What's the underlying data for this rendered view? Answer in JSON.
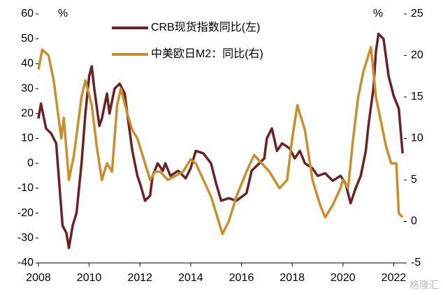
{
  "chart_data": {
    "type": "line",
    "y_unit": "%",
    "y2_unit": "%",
    "xlim": [
      2008,
      2022.4
    ],
    "xticks": [
      2008,
      2010,
      2012,
      2014,
      2016,
      2018,
      2020,
      2022
    ],
    "ylim": [
      -40,
      60
    ],
    "yticks": [
      -40,
      -30,
      -20,
      -10,
      0,
      10,
      20,
      30,
      40,
      50,
      60
    ],
    "y2lim": [
      -5,
      25
    ],
    "y2ticks": [
      -5,
      0,
      5,
      10,
      15,
      20,
      25
    ],
    "legend": "top",
    "watermark": "格隆汇",
    "series": [
      {
        "name": "CRB现货指数同比(左)",
        "color": "#6b2222",
        "x": [
          2008.0,
          2008.1,
          2008.3,
          2008.5,
          2008.7,
          2008.95,
          2009.1,
          2009.2,
          2009.35,
          2009.5,
          2009.7,
          2009.85,
          2010.0,
          2010.1,
          2010.2,
          2010.4,
          2010.5,
          2010.7,
          2010.8,
          2011.0,
          2011.2,
          2011.4,
          2011.5,
          2011.7,
          2011.9,
          2012.0,
          2012.2,
          2012.4,
          2012.5,
          2012.7,
          2012.9,
          2013.0,
          2013.2,
          2013.5,
          2013.8,
          2014.0,
          2014.2,
          2014.5,
          2014.8,
          2015.0,
          2015.2,
          2015.5,
          2015.8,
          2016.2,
          2016.4,
          2016.7,
          2016.9,
          2017.0,
          2017.2,
          2017.4,
          2017.6,
          2017.9,
          2018.1,
          2018.3,
          2018.5,
          2018.8,
          2019.0,
          2019.3,
          2019.6,
          2019.9,
          2020.1,
          2020.3,
          2020.5,
          2020.7,
          2020.9,
          2021.0,
          2021.2,
          2021.3,
          2021.4,
          2021.6,
          2021.8,
          2022.0,
          2022.2,
          2022.35
        ],
        "values": [
          18,
          24,
          14,
          12,
          8,
          -25,
          -28,
          -34,
          -25,
          -20,
          0,
          20,
          35,
          39,
          30,
          15,
          18,
          28,
          20,
          30,
          32,
          28,
          20,
          5,
          -5,
          -8,
          -15,
          -13,
          -5,
          0,
          -3,
          0,
          -5,
          -3,
          -6,
          -2,
          5,
          4,
          0,
          -8,
          -15,
          -14,
          -15,
          -12,
          -3,
          0,
          2,
          10,
          14,
          5,
          8,
          6,
          2,
          5,
          0,
          -2,
          -5,
          -4,
          -7,
          -5,
          -8,
          -16,
          -10,
          -5,
          5,
          15,
          30,
          45,
          52,
          50,
          35,
          27,
          22,
          4
        ]
      },
      {
        "name": "中美欧日M2：同比(右)",
        "color": "#c98f2f",
        "axis": "y2",
        "x": [
          2008.0,
          2008.15,
          2008.4,
          2008.6,
          2008.9,
          2009.0,
          2009.2,
          2009.4,
          2009.7,
          2009.85,
          2010.1,
          2010.3,
          2010.5,
          2010.7,
          2010.9,
          2011.1,
          2011.25,
          2011.5,
          2011.7,
          2011.9,
          2012.2,
          2012.4,
          2012.6,
          2012.8,
          2013.1,
          2013.4,
          2013.7,
          2014.0,
          2014.2,
          2014.5,
          2014.8,
          2015.1,
          2015.25,
          2015.5,
          2015.8,
          2016.2,
          2016.5,
          2016.8,
          2017.1,
          2017.5,
          2017.8,
          2018.0,
          2018.2,
          2018.5,
          2018.8,
          2019.1,
          2019.3,
          2019.6,
          2019.9,
          2020.0,
          2020.2,
          2020.4,
          2020.6,
          2020.8,
          2021.0,
          2021.1,
          2021.3,
          2021.5,
          2021.7,
          2021.9,
          2022.1,
          2022.2,
          2022.35
        ],
        "values": [
          18.3,
          20.7,
          20,
          17,
          10,
          12.5,
          5,
          8,
          15,
          17,
          14,
          9,
          5,
          7,
          6,
          14,
          16,
          13,
          11,
          10,
          7,
          5,
          6,
          6,
          5,
          5.5,
          6,
          7.5,
          7,
          5,
          3,
          0,
          -1.5,
          0,
          3,
          6,
          8,
          7,
          6,
          4,
          5,
          10,
          14,
          11,
          5,
          2,
          0.5,
          2,
          4,
          5,
          4,
          10,
          15,
          18,
          20,
          21,
          15,
          12,
          9,
          7,
          7,
          1,
          0.5
        ]
      }
    ]
  }
}
